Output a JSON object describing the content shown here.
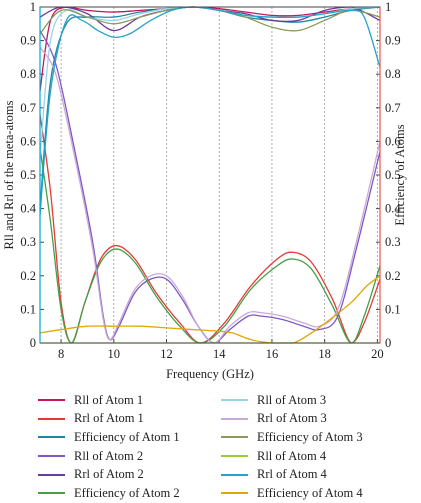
{
  "chart_data": {
    "type": "line",
    "title": "",
    "xlabel": "Frequency (GHz)",
    "ylabel_left": "Rll and Rrl of the meta-atoms",
    "ylabel_right": "Efficiency of Atoms",
    "xlim": [
      7.2,
      20.1
    ],
    "ylim": [
      0,
      1
    ],
    "x_ticks": [
      "8",
      "10",
      "12",
      "14",
      "16",
      "18",
      "20"
    ],
    "y_ticks": [
      "0",
      "0.1",
      "0.2",
      "0.3",
      "0.4",
      "0.5",
      "0.6",
      "0.7",
      "0.8",
      "0.9",
      "1"
    ],
    "grid": "vertical dashed",
    "legend_position": "bottom, two columns",
    "series": [
      {
        "name": "Rll of Atom 1",
        "color": "#c2185b",
        "points": [
          [
            7.2,
            0.75
          ],
          [
            7.6,
            0.96
          ],
          [
            8.2,
            1.0
          ],
          [
            9.0,
            0.99
          ],
          [
            10.0,
            0.985
          ],
          [
            11.0,
            0.99
          ],
          [
            12.0,
            0.995
          ],
          [
            13.0,
            1.0
          ],
          [
            14.0,
            0.995
          ],
          [
            15.0,
            0.985
          ],
          [
            16.0,
            0.975
          ],
          [
            17.0,
            0.975
          ],
          [
            18.0,
            0.985
          ],
          [
            19.0,
            0.995
          ],
          [
            20.1,
            1.0
          ]
        ]
      },
      {
        "name": "Rrl of Atom 1",
        "color": "#e53935",
        "points": [
          [
            7.2,
            0.68
          ],
          [
            7.6,
            0.45
          ],
          [
            8.0,
            0.12
          ],
          [
            8.4,
            0.0
          ],
          [
            8.9,
            0.12
          ],
          [
            9.5,
            0.25
          ],
          [
            10.1,
            0.29
          ],
          [
            10.8,
            0.25
          ],
          [
            11.6,
            0.15
          ],
          [
            12.5,
            0.06
          ],
          [
            13.3,
            0.0
          ],
          [
            14.2,
            0.06
          ],
          [
            15.2,
            0.17
          ],
          [
            16.2,
            0.25
          ],
          [
            16.8,
            0.27
          ],
          [
            17.5,
            0.24
          ],
          [
            18.3,
            0.13
          ],
          [
            19.0,
            0.0
          ],
          [
            19.5,
            0.06
          ],
          [
            20.1,
            0.19
          ]
        ]
      },
      {
        "name": "Efficiency of Atom 1",
        "color": "#1e88a8",
        "points": [
          [
            7.2,
            0.4
          ],
          [
            7.6,
            0.78
          ],
          [
            8.2,
            0.95
          ],
          [
            9.0,
            0.97
          ],
          [
            10.0,
            0.97
          ],
          [
            11.0,
            0.985
          ],
          [
            12.0,
            0.995
          ],
          [
            13.0,
            1.0
          ],
          [
            14.0,
            0.99
          ],
          [
            15.0,
            0.97
          ],
          [
            16.0,
            0.96
          ],
          [
            17.0,
            0.955
          ],
          [
            18.0,
            0.97
          ],
          [
            19.0,
            0.99
          ],
          [
            20.1,
            1.0
          ]
        ]
      },
      {
        "name": "Rll of Atom 2",
        "color": "#7e57c2",
        "points": [
          [
            7.2,
            0.93
          ],
          [
            7.8,
            0.83
          ],
          [
            8.5,
            0.58
          ],
          [
            9.2,
            0.3
          ],
          [
            9.6,
            0.08
          ],
          [
            9.85,
            0.01
          ],
          [
            10.2,
            0.05
          ],
          [
            10.8,
            0.15
          ],
          [
            11.4,
            0.19
          ],
          [
            12.0,
            0.19
          ],
          [
            12.6,
            0.13
          ],
          [
            13.2,
            0.05
          ],
          [
            13.8,
            0.0
          ],
          [
            14.4,
            0.04
          ],
          [
            15.1,
            0.08
          ],
          [
            15.6,
            0.08
          ],
          [
            16.4,
            0.07
          ],
          [
            17.2,
            0.05
          ],
          [
            17.8,
            0.04
          ],
          [
            18.5,
            0.08
          ],
          [
            19.2,
            0.28
          ],
          [
            20.1,
            0.57
          ]
        ]
      },
      {
        "name": "Rrl of Atom 2",
        "color": "#6a3d9a",
        "points": [
          [
            7.2,
            0.97
          ],
          [
            8.0,
            1.0
          ],
          [
            9.0,
            0.98
          ],
          [
            10.0,
            0.93
          ],
          [
            11.0,
            0.97
          ],
          [
            12.0,
            0.99
          ],
          [
            13.0,
            1.0
          ],
          [
            14.0,
            0.99
          ],
          [
            15.0,
            0.98
          ],
          [
            16.0,
            0.96
          ],
          [
            17.0,
            0.96
          ],
          [
            18.0,
            0.99
          ],
          [
            19.0,
            1.0
          ],
          [
            20.1,
            0.96
          ]
        ]
      },
      {
        "name": "Efficiency of Atom 2",
        "color": "#43a047",
        "points": [
          [
            7.2,
            0.58
          ],
          [
            7.6,
            0.36
          ],
          [
            8.0,
            0.1
          ],
          [
            8.4,
            0.0
          ],
          [
            8.9,
            0.12
          ],
          [
            9.5,
            0.24
          ],
          [
            10.1,
            0.28
          ],
          [
            10.8,
            0.24
          ],
          [
            11.6,
            0.14
          ],
          [
            12.5,
            0.05
          ],
          [
            13.3,
            0.0
          ],
          [
            14.2,
            0.05
          ],
          [
            15.2,
            0.16
          ],
          [
            16.2,
            0.23
          ],
          [
            16.8,
            0.25
          ],
          [
            17.5,
            0.22
          ],
          [
            18.3,
            0.11
          ],
          [
            19.0,
            0.0
          ],
          [
            19.5,
            0.08
          ],
          [
            20.1,
            0.23
          ]
        ]
      },
      {
        "name": "Rll of Atom 3",
        "color": "#9ad3e8",
        "points": [
          [
            7.2,
            0.55
          ],
          [
            7.6,
            0.9
          ],
          [
            8.2,
            0.99
          ],
          [
            9.0,
            0.97
          ],
          [
            10.0,
            0.96
          ],
          [
            11.0,
            0.98
          ],
          [
            12.0,
            0.995
          ],
          [
            13.0,
            1.0
          ],
          [
            14.0,
            0.99
          ],
          [
            15.0,
            0.975
          ],
          [
            16.0,
            0.97
          ],
          [
            17.0,
            0.97
          ],
          [
            18.0,
            0.98
          ],
          [
            19.0,
            0.995
          ],
          [
            20.1,
            1.0
          ]
        ]
      },
      {
        "name": "Rrl of Atom 3",
        "color": "#c9a9d9",
        "points": [
          [
            7.2,
            0.88
          ],
          [
            7.8,
            0.8
          ],
          [
            8.5,
            0.56
          ],
          [
            9.2,
            0.28
          ],
          [
            9.6,
            0.07
          ],
          [
            9.85,
            0.01
          ],
          [
            10.2,
            0.06
          ],
          [
            10.8,
            0.16
          ],
          [
            11.4,
            0.2
          ],
          [
            12.0,
            0.2
          ],
          [
            12.6,
            0.14
          ],
          [
            13.2,
            0.05
          ],
          [
            13.8,
            0.0
          ],
          [
            14.4,
            0.05
          ],
          [
            15.1,
            0.09
          ],
          [
            15.6,
            0.09
          ],
          [
            16.4,
            0.08
          ],
          [
            17.2,
            0.06
          ],
          [
            17.8,
            0.05
          ],
          [
            18.5,
            0.1
          ],
          [
            19.2,
            0.3
          ],
          [
            20.1,
            0.6
          ]
        ]
      },
      {
        "name": "Efficiency of Atom 3",
        "color": "#8a9a5b",
        "points": [
          [
            7.2,
            0.92
          ],
          [
            8.0,
            0.99
          ],
          [
            9.0,
            0.97
          ],
          [
            10.0,
            0.95
          ],
          [
            11.0,
            0.97
          ],
          [
            12.0,
            0.99
          ],
          [
            13.0,
            1.0
          ],
          [
            14.0,
            0.99
          ],
          [
            15.0,
            0.97
          ],
          [
            16.0,
            0.94
          ],
          [
            17.0,
            0.93
          ],
          [
            18.0,
            0.96
          ],
          [
            19.0,
            0.99
          ],
          [
            20.1,
            0.97
          ]
        ]
      },
      {
        "name": "Rll of Atom 4",
        "color": "#9acd32",
        "points": [
          [
            7.2,
            0.0
          ],
          [
            8.0,
            0.0
          ],
          [
            10.0,
            0.0
          ],
          [
            12.0,
            0.0
          ],
          [
            14.0,
            0.0
          ],
          [
            16.0,
            0.0
          ],
          [
            18.0,
            0.0
          ],
          [
            20.1,
            0.0
          ]
        ]
      },
      {
        "name": "Rrl of Atom 4",
        "color": "#26a2c9",
        "points": [
          [
            7.2,
            0.38
          ],
          [
            7.6,
            0.75
          ],
          [
            8.2,
            0.96
          ],
          [
            8.8,
            0.96
          ],
          [
            9.4,
            0.93
          ],
          [
            10.0,
            0.91
          ],
          [
            10.6,
            0.92
          ],
          [
            11.4,
            0.96
          ],
          [
            12.2,
            0.99
          ],
          [
            13.0,
            1.0
          ],
          [
            14.0,
            0.99
          ],
          [
            15.0,
            0.975
          ],
          [
            16.0,
            0.97
          ],
          [
            17.0,
            0.97
          ],
          [
            18.0,
            0.98
          ],
          [
            19.0,
            0.99
          ],
          [
            19.5,
            0.97
          ],
          [
            20.1,
            0.82
          ]
        ]
      },
      {
        "name": "Efficiency of Atom 4",
        "color": "#e0a800",
        "points": [
          [
            7.2,
            0.03
          ],
          [
            8.0,
            0.04
          ],
          [
            9.0,
            0.05
          ],
          [
            10.0,
            0.05
          ],
          [
            11.0,
            0.05
          ],
          [
            12.0,
            0.045
          ],
          [
            13.0,
            0.04
          ],
          [
            14.0,
            0.035
          ],
          [
            14.5,
            0.03
          ],
          [
            15.2,
            0.01
          ],
          [
            16.0,
            0.0
          ],
          [
            16.8,
            0.0
          ],
          [
            17.5,
            0.03
          ],
          [
            18.2,
            0.07
          ],
          [
            19.0,
            0.12
          ],
          [
            19.6,
            0.17
          ],
          [
            20.1,
            0.2
          ]
        ]
      }
    ]
  }
}
